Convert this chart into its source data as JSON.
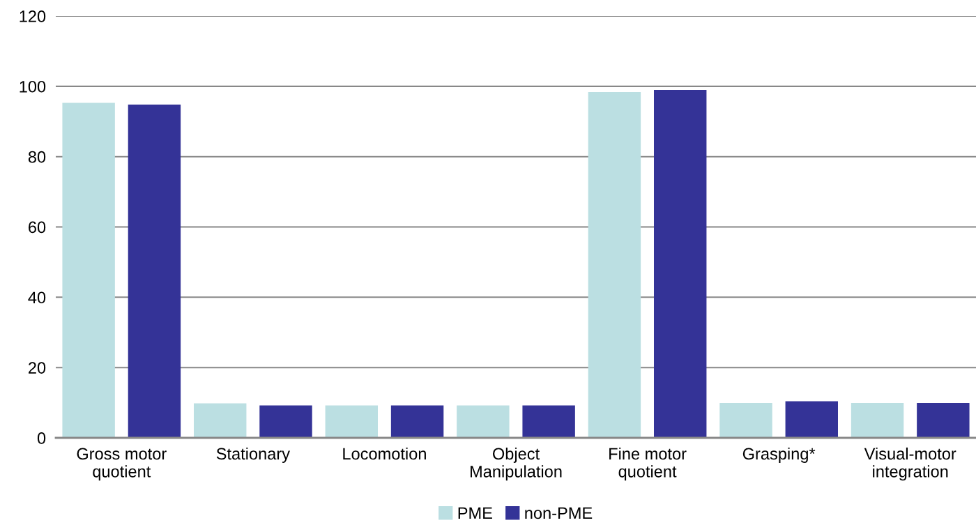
{
  "chart_data": {
    "type": "bar",
    "categories": [
      "Gross motor\nquotient",
      "Stationary",
      "Locomotion",
      "Object\nManipulation",
      "Fine motor\nquotient",
      "Grasping*",
      "Visual-motor\nintegration"
    ],
    "series": [
      {
        "name": "PME",
        "color": "#bbdfe2",
        "values": [
          95.3,
          9.8,
          9.2,
          9.2,
          98.4,
          9.9,
          9.9
        ]
      },
      {
        "name": "non-PME",
        "color": "#343397",
        "values": [
          94.8,
          9.2,
          9.2,
          9.2,
          99.0,
          10.4,
          9.9
        ]
      }
    ],
    "ylim": [
      0,
      120
    ],
    "yticks": [
      0,
      20,
      40,
      60,
      80,
      100,
      120
    ],
    "grid": "y",
    "legend": "bottom"
  }
}
